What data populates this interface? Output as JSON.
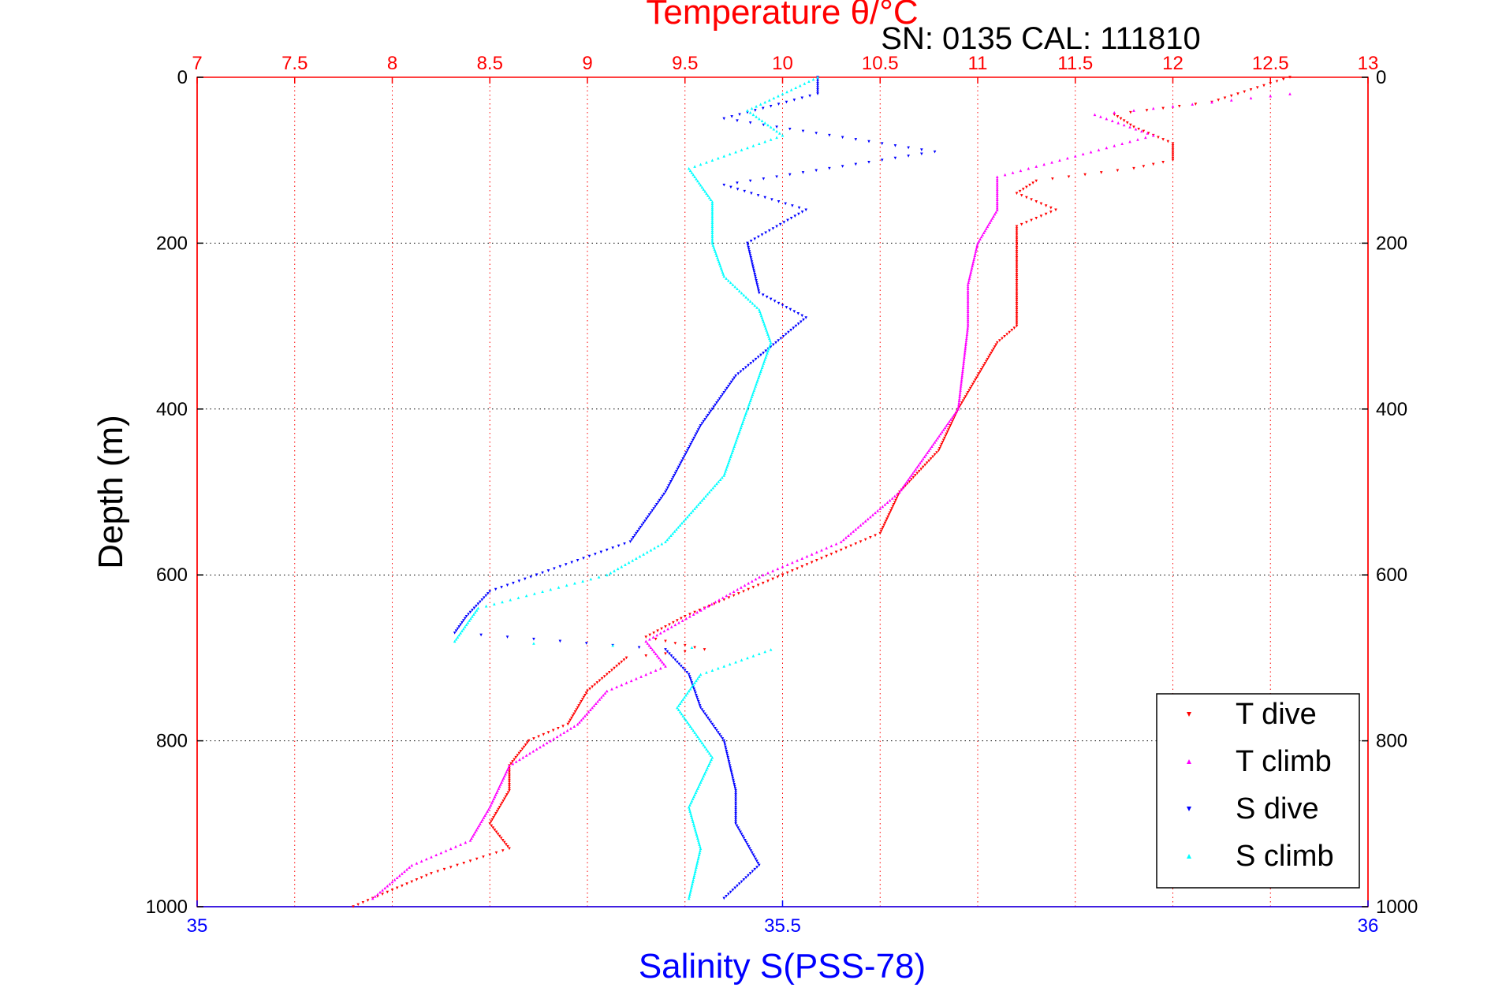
{
  "chart_data": {
    "type": "scatter",
    "title": "Temperature θ/°C",
    "subtitle": "SN: 0135  CAL: 111810",
    "ylabel": "Depth (m)",
    "xlabel_bottom": "Salinity S(PSS-78)",
    "x_top": {
      "label": "Temperature θ/°C",
      "lim": [
        7,
        13
      ],
      "ticks": [
        "7",
        "7.5",
        "8",
        "8.5",
        "9",
        "9.5",
        "10",
        "10.5",
        "11",
        "11.5",
        "12",
        "12.5",
        "13"
      ],
      "color": "#ff0000"
    },
    "x_bottom": {
      "label": "Salinity S(PSS-78)",
      "lim": [
        35,
        36
      ],
      "ticks": [
        "35",
        "35.5",
        "36"
      ],
      "color": "#0000ff"
    },
    "y": {
      "lim": [
        0,
        1000
      ],
      "reversed": true,
      "ticks": [
        "0",
        "200",
        "400",
        "600",
        "800",
        "1000"
      ]
    },
    "grid": "dotted",
    "legend": {
      "position": "bottom-right",
      "entries": [
        "T dive",
        "T climb",
        "S dive",
        "S climb"
      ]
    },
    "series": [
      {
        "name": "T dive",
        "axis": "temperature",
        "color": "#ff0000",
        "marker": "triangle-down",
        "points": [
          [
            12.6,
            0
          ],
          [
            12.2,
            30
          ],
          [
            11.7,
            45
          ],
          [
            11.8,
            60
          ],
          [
            12.0,
            80
          ],
          [
            12.0,
            100
          ],
          [
            11.8,
            110
          ],
          [
            11.3,
            125
          ],
          [
            11.2,
            140
          ],
          [
            11.4,
            160
          ],
          [
            11.2,
            180
          ],
          [
            11.2,
            200
          ],
          [
            11.2,
            230
          ],
          [
            11.2,
            260
          ],
          [
            11.2,
            300
          ],
          [
            11.1,
            320
          ],
          [
            11.0,
            360
          ],
          [
            10.9,
            400
          ],
          [
            10.8,
            450
          ],
          [
            10.6,
            500
          ],
          [
            10.5,
            550
          ],
          [
            10.0,
            600
          ],
          [
            9.8,
            620
          ],
          [
            9.5,
            650
          ],
          [
            9.3,
            675
          ],
          [
            9.6,
            690
          ],
          [
            9.2,
            700
          ],
          [
            9.0,
            740
          ],
          [
            8.9,
            780
          ],
          [
            8.7,
            800
          ],
          [
            8.6,
            830
          ],
          [
            8.6,
            860
          ],
          [
            8.5,
            900
          ],
          [
            8.6,
            930
          ],
          [
            8.2,
            960
          ],
          [
            8.0,
            980
          ],
          [
            7.8,
            1000
          ]
        ]
      },
      {
        "name": "T climb",
        "axis": "temperature",
        "color": "#ff00ff",
        "marker": "triangle-up",
        "points": [
          [
            12.6,
            20
          ],
          [
            11.6,
            45
          ],
          [
            11.9,
            70
          ],
          [
            11.5,
            95
          ],
          [
            11.1,
            120
          ],
          [
            11.1,
            160
          ],
          [
            11.0,
            200
          ],
          [
            10.95,
            250
          ],
          [
            10.95,
            300
          ],
          [
            10.9,
            400
          ],
          [
            10.6,
            500
          ],
          [
            10.3,
            560
          ],
          [
            9.9,
            600
          ],
          [
            9.6,
            640
          ],
          [
            9.3,
            680
          ],
          [
            9.4,
            710
          ],
          [
            9.1,
            740
          ],
          [
            8.95,
            780
          ],
          [
            8.6,
            830
          ],
          [
            8.5,
            880
          ],
          [
            8.4,
            920
          ],
          [
            8.1,
            950
          ],
          [
            7.9,
            990
          ]
        ]
      },
      {
        "name": "S dive",
        "axis": "salinity",
        "color": "#0000ff",
        "marker": "triangle-down",
        "points": [
          [
            35.53,
            0
          ],
          [
            35.53,
            20
          ],
          [
            35.45,
            50
          ],
          [
            35.63,
            90
          ],
          [
            35.45,
            130
          ],
          [
            35.52,
            160
          ],
          [
            35.47,
            200
          ],
          [
            35.48,
            260
          ],
          [
            35.52,
            290
          ],
          [
            35.46,
            360
          ],
          [
            35.43,
            420
          ],
          [
            35.4,
            500
          ],
          [
            35.37,
            560
          ],
          [
            35.25,
            620
          ],
          [
            35.23,
            650
          ],
          [
            35.22,
            670
          ],
          [
            35.4,
            690
          ],
          [
            35.42,
            720
          ],
          [
            35.43,
            760
          ],
          [
            35.45,
            800
          ],
          [
            35.46,
            860
          ],
          [
            35.46,
            900
          ],
          [
            35.48,
            950
          ],
          [
            35.45,
            990
          ]
        ]
      },
      {
        "name": "S climb",
        "axis": "salinity",
        "color": "#00ffff",
        "marker": "triangle-up",
        "points": [
          [
            35.53,
            0
          ],
          [
            35.5,
            20
          ],
          [
            35.47,
            40
          ],
          [
            35.5,
            70
          ],
          [
            35.46,
            90
          ],
          [
            35.42,
            110
          ],
          [
            35.44,
            150
          ],
          [
            35.44,
            200
          ],
          [
            35.45,
            240
          ],
          [
            35.48,
            280
          ],
          [
            35.49,
            320
          ],
          [
            35.47,
            400
          ],
          [
            35.45,
            480
          ],
          [
            35.4,
            560
          ],
          [
            35.35,
            600
          ],
          [
            35.24,
            640
          ],
          [
            35.22,
            680
          ],
          [
            35.49,
            690
          ],
          [
            35.43,
            720
          ],
          [
            35.41,
            760
          ],
          [
            35.44,
            820
          ],
          [
            35.42,
            880
          ],
          [
            35.43,
            930
          ],
          [
            35.42,
            990
          ]
        ]
      }
    ]
  }
}
